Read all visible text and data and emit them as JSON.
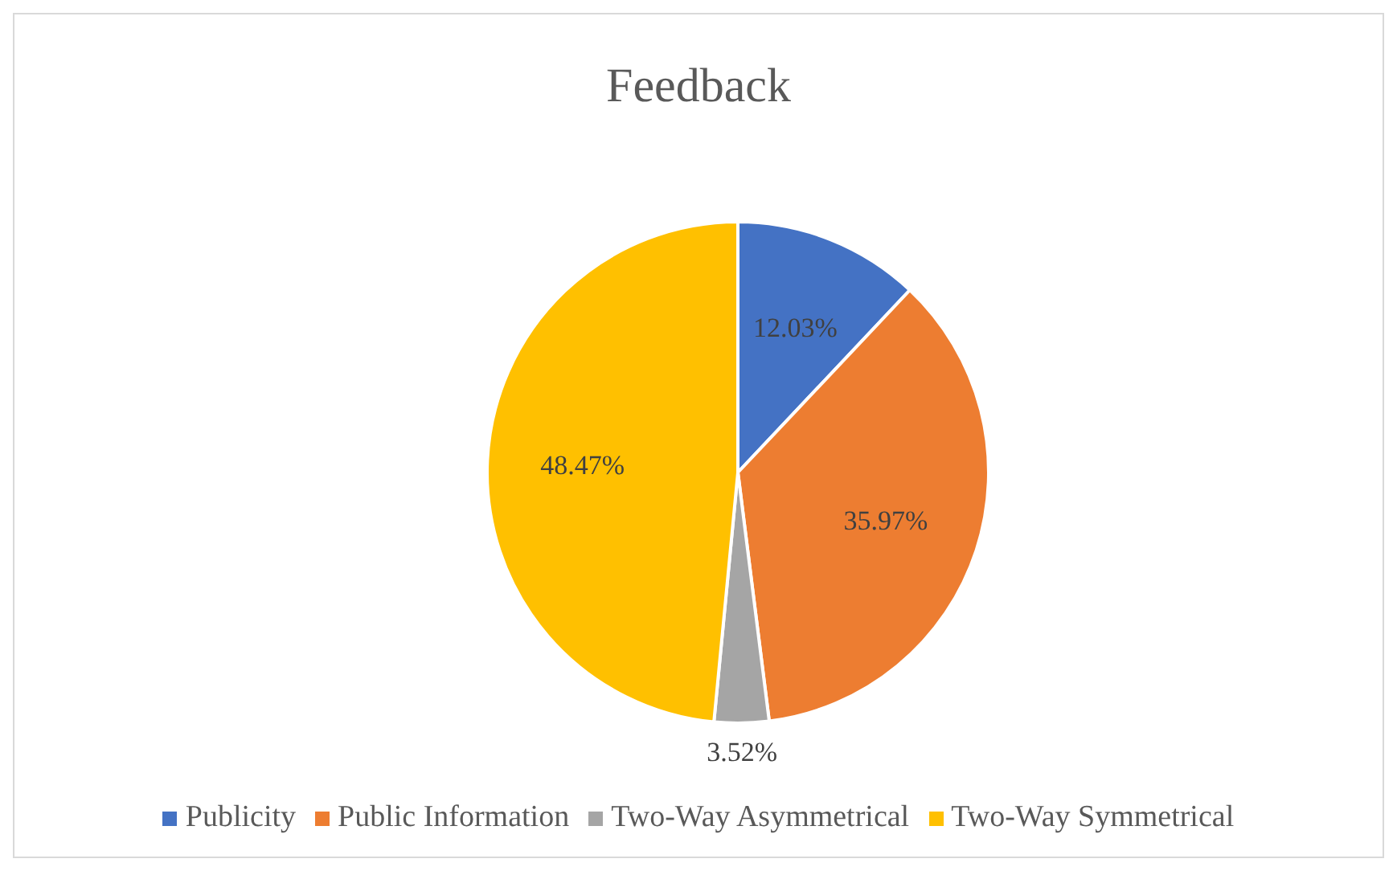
{
  "chart_data": {
    "type": "pie",
    "title": "Feedback",
    "categories": [
      "Publicity",
      "Public Information",
      "Two-Way Asymmetrical",
      "Two-Way Symmetrical"
    ],
    "values": [
      12.03,
      35.97,
      3.52,
      48.47
    ],
    "colors": [
      "#4472c4",
      "#ed7d31",
      "#a5a5a5",
      "#ffc000"
    ],
    "value_labels": [
      "12.03%",
      "35.97%",
      "3.52%",
      "48.47%"
    ],
    "legend": "bottom"
  }
}
